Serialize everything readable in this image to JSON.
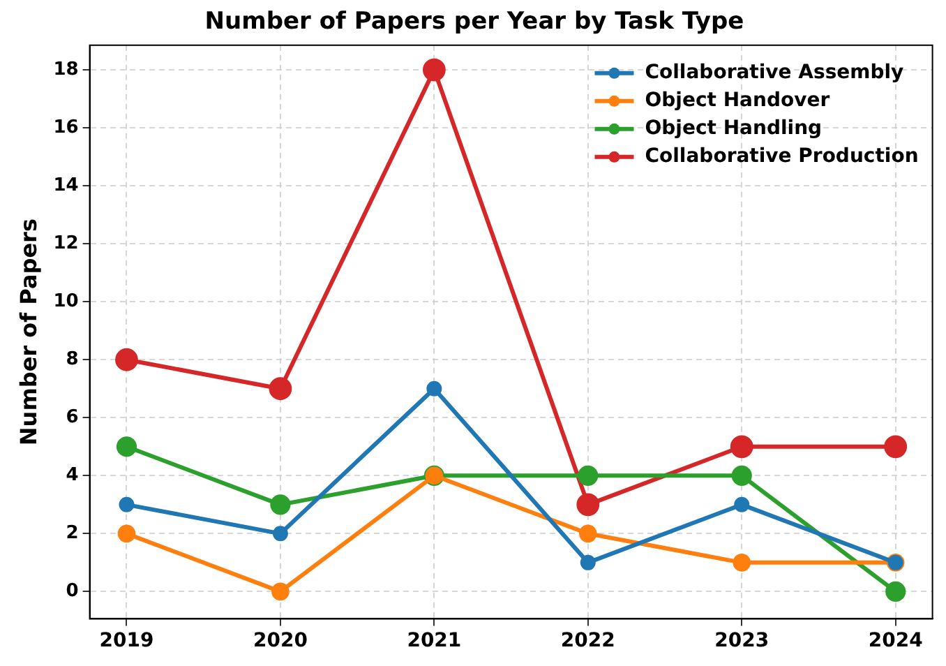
{
  "chart_data": {
    "type": "line",
    "title": "Number of Papers per Year by Task Type",
    "ylabel": "Number of Papers",
    "x": [
      2019,
      2020,
      2021,
      2022,
      2023,
      2024
    ],
    "series": [
      {
        "name": "Collaborative Assembly",
        "color": "#1f77b4",
        "values": [
          3,
          2,
          7,
          1,
          3,
          1
        ]
      },
      {
        "name": "Object Handover",
        "color": "#ff7f0e",
        "values": [
          2,
          0,
          4,
          2,
          1,
          1
        ]
      },
      {
        "name": "Object Handling",
        "color": "#2ca02c",
        "values": [
          5,
          3,
          4,
          4,
          4,
          0
        ]
      },
      {
        "name": "Collaborative Production",
        "color": "#d62728",
        "values": [
          8,
          7,
          18,
          3,
          5,
          5
        ]
      }
    ],
    "xlim": [
      2018.76,
      2024.24
    ],
    "xticks": [
      2019,
      2020,
      2021,
      2022,
      2023,
      2024
    ],
    "ylim": [
      -0.94,
      18.85
    ],
    "yticks": [
      0,
      2,
      4,
      6,
      8,
      10,
      12,
      14,
      16,
      18
    ],
    "grid": true,
    "legend": "top right",
    "marker": "circle",
    "line_style": "solid"
  }
}
